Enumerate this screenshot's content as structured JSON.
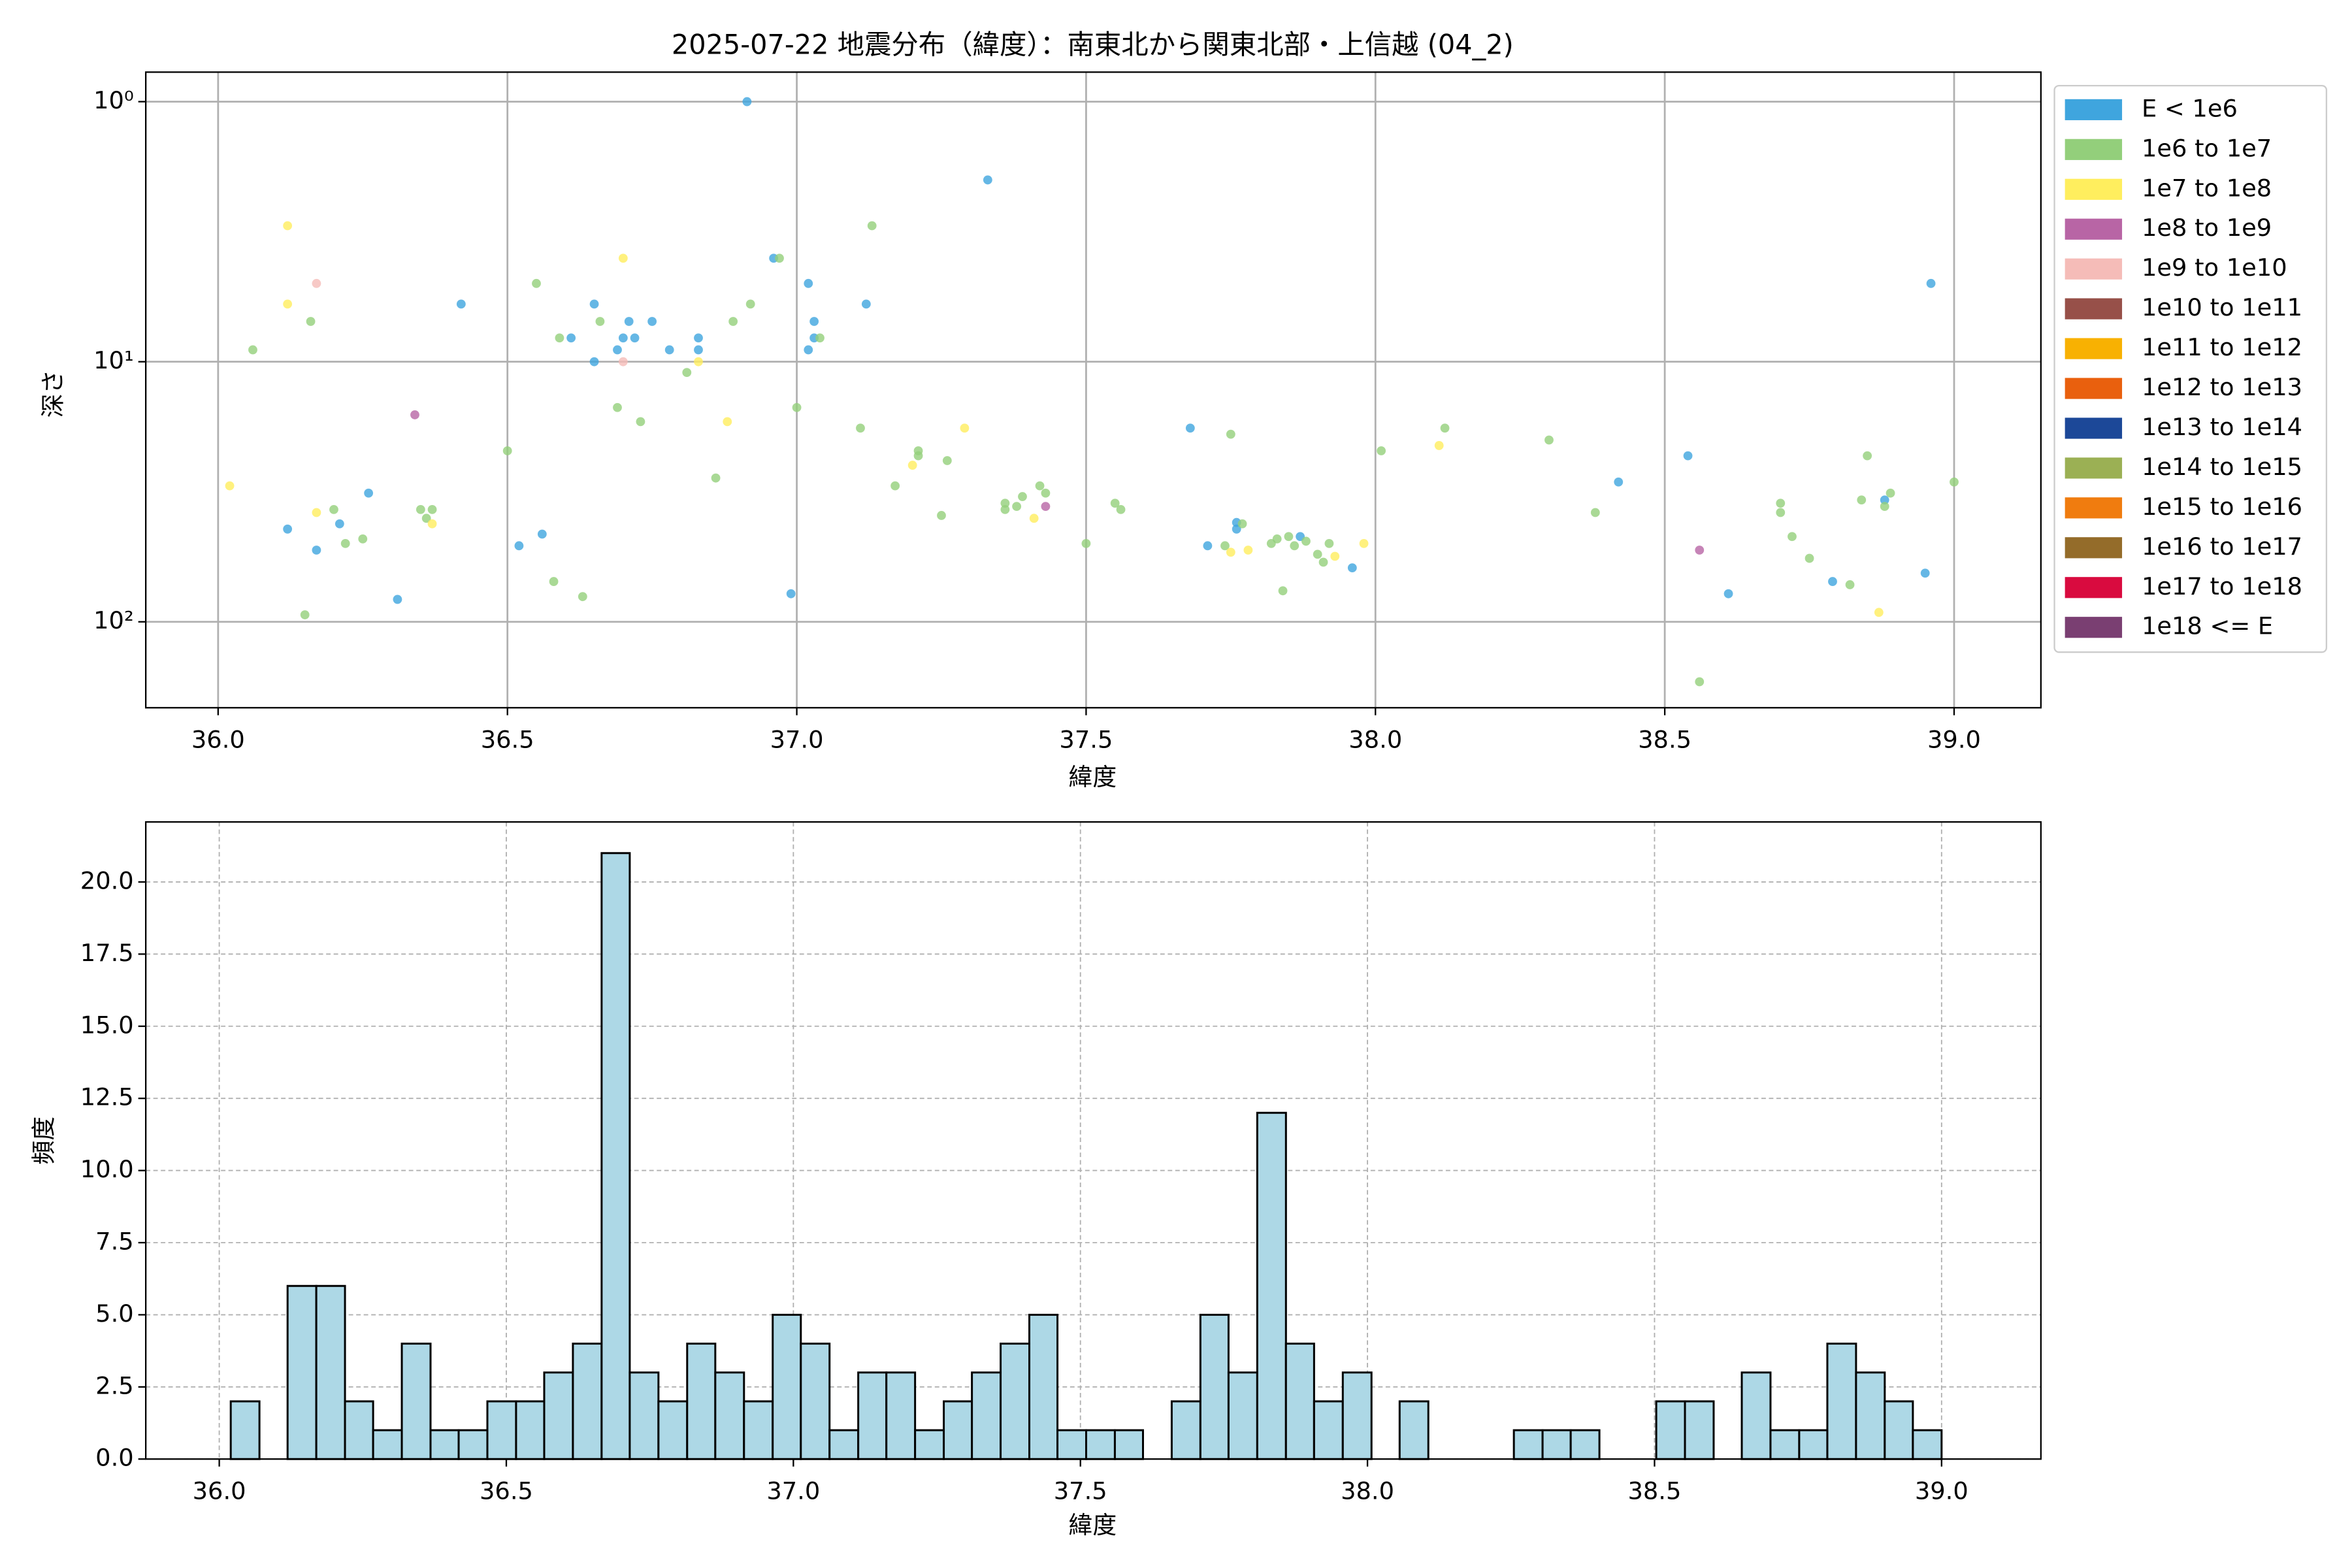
{
  "chart_data": [
    {
      "type": "scatter",
      "title": "2025-07-22 地震分布（緯度）：南東北から関東北部・上信越 (04_2)",
      "x_label": "緯度",
      "y_label": "深さ",
      "log_y": true,
      "invert_y": true,
      "grid": true,
      "legend": "outside-right",
      "xlim": [
        35.875,
        39.15
      ],
      "ylim": [
        0.77,
        214
      ],
      "xticks": [
        {
          "value": 36,
          "label": "36.0"
        },
        36.5,
        {
          "value": 37,
          "label": "37.0"
        },
        37.5,
        {
          "value": 38,
          "label": "38.0"
        },
        38.5,
        {
          "value": 39,
          "label": "39.0"
        }
      ],
      "yticks": [
        {
          "value": 1,
          "label": "10⁰"
        },
        {
          "value": 10,
          "label": "10¹"
        },
        {
          "value": 100,
          "label": "10²"
        }
      ],
      "series": [
        {
          "name": "E < 1e6",
          "color": "#3fa5de",
          "x": [
            36.914,
            37.33,
            36.96,
            37.02,
            37.12,
            36.42,
            36.65,
            36.71,
            36.75,
            37.03,
            36.61,
            36.7,
            36.72,
            36.83,
            37.03,
            36.69,
            36.78,
            36.83,
            37.02,
            36.65,
            38.96,
            37.68,
            38.54,
            38.42,
            36.26,
            36.12,
            36.21,
            37.76,
            37.76,
            36.56,
            36.52,
            36.17,
            37.71,
            37.87,
            37.96,
            38.79,
            38.95,
            36.99,
            36.31,
            38.61,
            38.88
          ],
          "values": [
            1,
            2,
            4,
            5,
            6,
            6,
            6,
            7,
            7,
            7,
            8.1,
            8.1,
            8.1,
            8.1,
            8.1,
            9,
            9,
            9,
            9,
            10,
            5,
            18,
            23,
            29,
            32,
            44,
            42,
            41.5,
            44,
            46,
            51,
            53,
            51,
            47,
            62,
            70,
            65,
            78,
            82,
            78,
            34
          ]
        },
        {
          "name": "1e6 to 1e7",
          "color": "#93cf7b",
          "x": [
            37.13,
            36.97,
            36.55,
            36.92,
            36.16,
            36.06,
            36.66,
            36.59,
            37.04,
            36.89,
            36.81,
            36.69,
            36.73,
            37.0,
            37.11,
            38.12,
            37.75,
            38.3,
            36.5,
            38.01,
            37.21,
            37.21,
            37.26,
            36.86,
            37.17,
            37.42,
            37.43,
            37.39,
            37.36,
            37.36,
            37.38,
            37.25,
            37.55,
            37.56,
            38.38,
            38.7,
            38.7,
            38.85,
            38.84,
            38.89,
            38.88,
            39.0,
            36.2,
            36.35,
            36.37,
            36.36,
            36.25,
            36.22,
            37.5,
            38.72,
            38.75,
            37.77,
            37.82,
            37.83,
            37.85,
            37.86,
            37.88,
            37.9,
            37.91,
            37.92,
            37.74,
            36.58,
            36.63,
            37.84,
            38.82,
            36.15,
            38.56
          ],
          "values": [
            3,
            4,
            5,
            6,
            7,
            9,
            7,
            8.1,
            8.1,
            7,
            11,
            15,
            17,
            15,
            18,
            18,
            19,
            20,
            22,
            22,
            22,
            23,
            24,
            28,
            30,
            30,
            32,
            33,
            35,
            37,
            36,
            39,
            35,
            37,
            38,
            35,
            38,
            23,
            34,
            32,
            36,
            29,
            37,
            37,
            37,
            40,
            48,
            50,
            50,
            47,
            57,
            42,
            50,
            48,
            47,
            51,
            49,
            55,
            59,
            50,
            51,
            70,
            80,
            76,
            72,
            94,
            170
          ]
        },
        {
          "name": "1e7 to 1e8",
          "color": "#ffee5e",
          "x": [
            36.12,
            36.12,
            36.7,
            36.83,
            36.88,
            37.29,
            38.11,
            37.2,
            36.02,
            36.17,
            36.37,
            37.41,
            37.75,
            37.78,
            37.93,
            37.98,
            38.87
          ],
          "values": [
            3,
            6,
            4,
            10,
            17,
            18,
            21,
            25,
            30,
            38,
            42,
            40,
            54,
            53,
            56,
            50,
            92
          ]
        },
        {
          "name": "1e8 to 1e9",
          "color": "#b865a5",
          "x": [
            36.34,
            37.43,
            38.56
          ],
          "values": [
            16,
            36,
            53
          ]
        },
        {
          "name": "1e9 to 1e10",
          "color": "#f5bcb8",
          "x": [
            36.17,
            36.7
          ],
          "values": [
            5,
            10
          ]
        },
        {
          "name": "1e10 to 1e11",
          "color": "#975049",
          "x": [],
          "values": []
        },
        {
          "name": "1e11 to 1e12",
          "color": "#f8b102",
          "x": [],
          "values": []
        },
        {
          "name": "1e12 to 1e13",
          "color": "#e9600e",
          "x": [],
          "values": []
        },
        {
          "name": "1e13 to 1e14",
          "color": "#1c4898",
          "x": [],
          "values": []
        },
        {
          "name": "1e14 to 1e15",
          "color": "#9bb054",
          "x": [],
          "values": []
        },
        {
          "name": "1e15 to 1e16",
          "color": "#f07c0f",
          "x": [],
          "values": []
        },
        {
          "name": "1e16 to 1e17",
          "color": "#946c2a",
          "x": [],
          "values": []
        },
        {
          "name": "1e17 to 1e18",
          "color": "#d90b3f",
          "x": [],
          "values": []
        },
        {
          "name": "1e18 <= E",
          "color": "#7a3f72",
          "x": [],
          "values": []
        }
      ]
    },
    {
      "type": "histogram",
      "x_label": "緯度",
      "y_label": "頻度",
      "grid": true,
      "color": "#add8e6",
      "edgecolor": "#000000",
      "xlim": [
        35.872,
        39.173
      ],
      "ylim": [
        0,
        22.08
      ],
      "xticks": [
        {
          "value": 36,
          "label": "36.0"
        },
        36.5,
        {
          "value": 37,
          "label": "37.0"
        },
        37.5,
        {
          "value": 38,
          "label": "38.0"
        },
        38.5,
        {
          "value": 39,
          "label": "39.0"
        }
      ],
      "yticks": [
        {
          "value": 0,
          "label": "0.0"
        },
        2.5,
        {
          "value": 5,
          "label": "5.0"
        },
        7.5,
        {
          "value": 10,
          "label": "10.0"
        },
        12.5,
        {
          "value": 15,
          "label": "15.0"
        },
        17.5,
        {
          "value": 20,
          "label": "20.0"
        }
      ],
      "bins": [
        36.02,
        36.07,
        36.119,
        36.169,
        36.219,
        36.268,
        36.318,
        36.368,
        36.417,
        36.467,
        36.517,
        36.566,
        36.616,
        36.666,
        36.715,
        36.765,
        36.815,
        36.864,
        36.914,
        36.964,
        37.013,
        37.063,
        37.113,
        37.162,
        37.212,
        37.262,
        37.311,
        37.361,
        37.411,
        37.46,
        37.51,
        37.56,
        37.609,
        37.659,
        37.709,
        37.758,
        37.808,
        37.858,
        37.907,
        37.957,
        38.007,
        38.056,
        38.106,
        38.156,
        38.205,
        38.255,
        38.305,
        38.354,
        38.404,
        38.454,
        38.503,
        38.553,
        38.603,
        38.652,
        38.702,
        38.752,
        38.801,
        38.851,
        38.901,
        38.95,
        39.0
      ],
      "values": [
        2,
        0,
        6,
        6,
        2,
        1,
        4,
        1,
        1,
        2,
        2,
        3,
        4,
        21,
        3,
        2,
        4,
        3,
        2,
        5,
        4,
        1,
        3,
        3,
        1,
        2,
        3,
        4,
        5,
        1,
        1,
        1,
        0,
        2,
        5,
        3,
        12,
        4,
        2,
        3,
        0,
        2,
        0,
        0,
        0,
        1,
        1,
        1,
        0,
        0,
        2,
        2,
        0,
        3,
        1,
        1,
        4,
        3,
        2,
        1
      ]
    }
  ]
}
